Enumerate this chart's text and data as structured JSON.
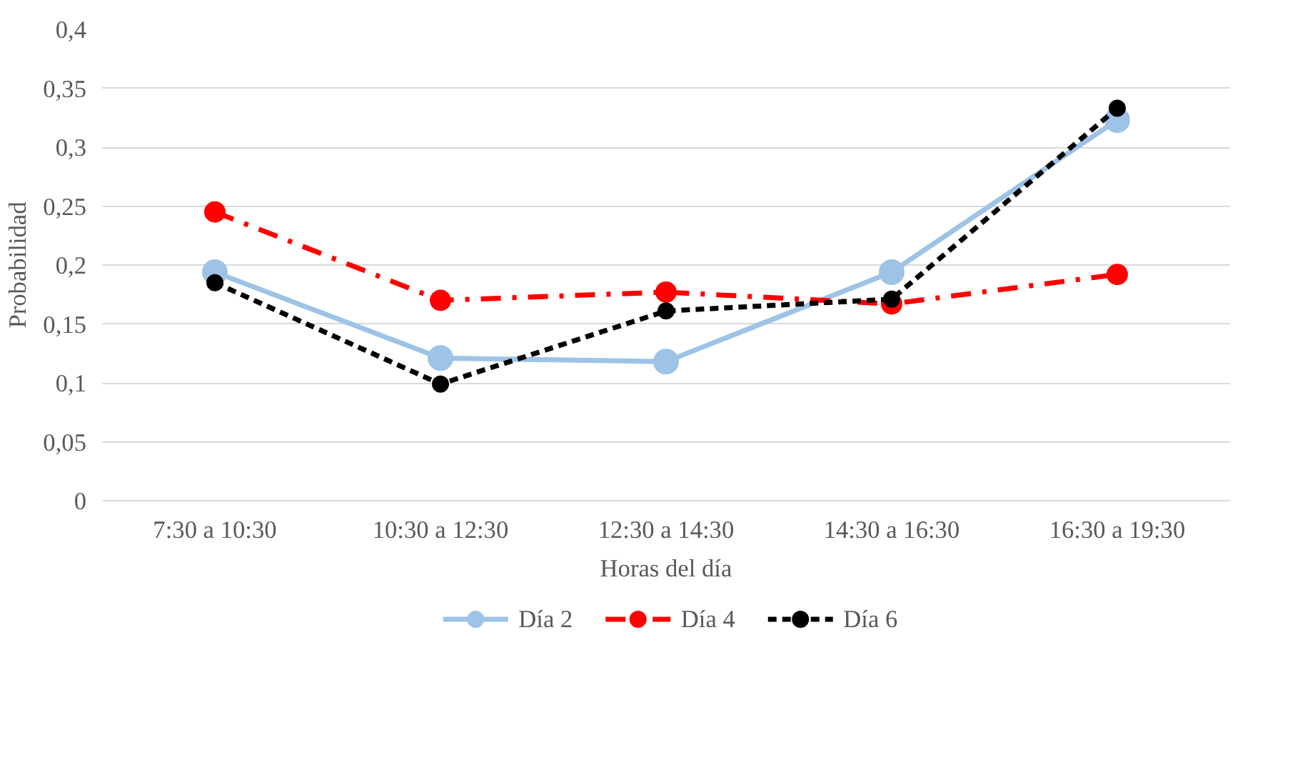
{
  "chart_data": {
    "type": "line",
    "xlabel": "Horas del día",
    "ylabel": "Probabilidad",
    "categories": [
      "7:30 a 10:30",
      "10:30 a 12:30",
      "12:30 a 14:30",
      "14:30 a 16:30",
      "16:30 a 19:30"
    ],
    "series": [
      {
        "name": "Día 2",
        "color": "#9dc3e6",
        "line_style": "solid",
        "values": [
          0.194,
          0.121,
          0.118,
          0.194,
          0.323
        ]
      },
      {
        "name": "Día 4",
        "color": "#ff0000",
        "line_style": "dashdot",
        "values": [
          0.245,
          0.17,
          0.177,
          0.167,
          0.192
        ]
      },
      {
        "name": "Día 6",
        "color": "#000000",
        "line_style": "dashed",
        "values": [
          0.185,
          0.099,
          0.161,
          0.171,
          0.333
        ]
      }
    ],
    "ylim": [
      0,
      0.4
    ],
    "yticks": [
      0,
      {
        "value": 0.05,
        "label": "0,05"
      },
      {
        "value": 0.1,
        "label": "0,1"
      },
      {
        "value": 0.15,
        "label": "0,15"
      },
      {
        "value": 0.2,
        "label": "0,2"
      },
      {
        "value": 0.25,
        "label": "0,25"
      },
      {
        "value": 0.3,
        "label": "0,3"
      },
      {
        "value": 0.35,
        "label": "0,35"
      },
      {
        "value": 0.4,
        "label": "0,4"
      }
    ],
    "grid": "y",
    "legend": "bottom",
    "marker": "circle"
  }
}
